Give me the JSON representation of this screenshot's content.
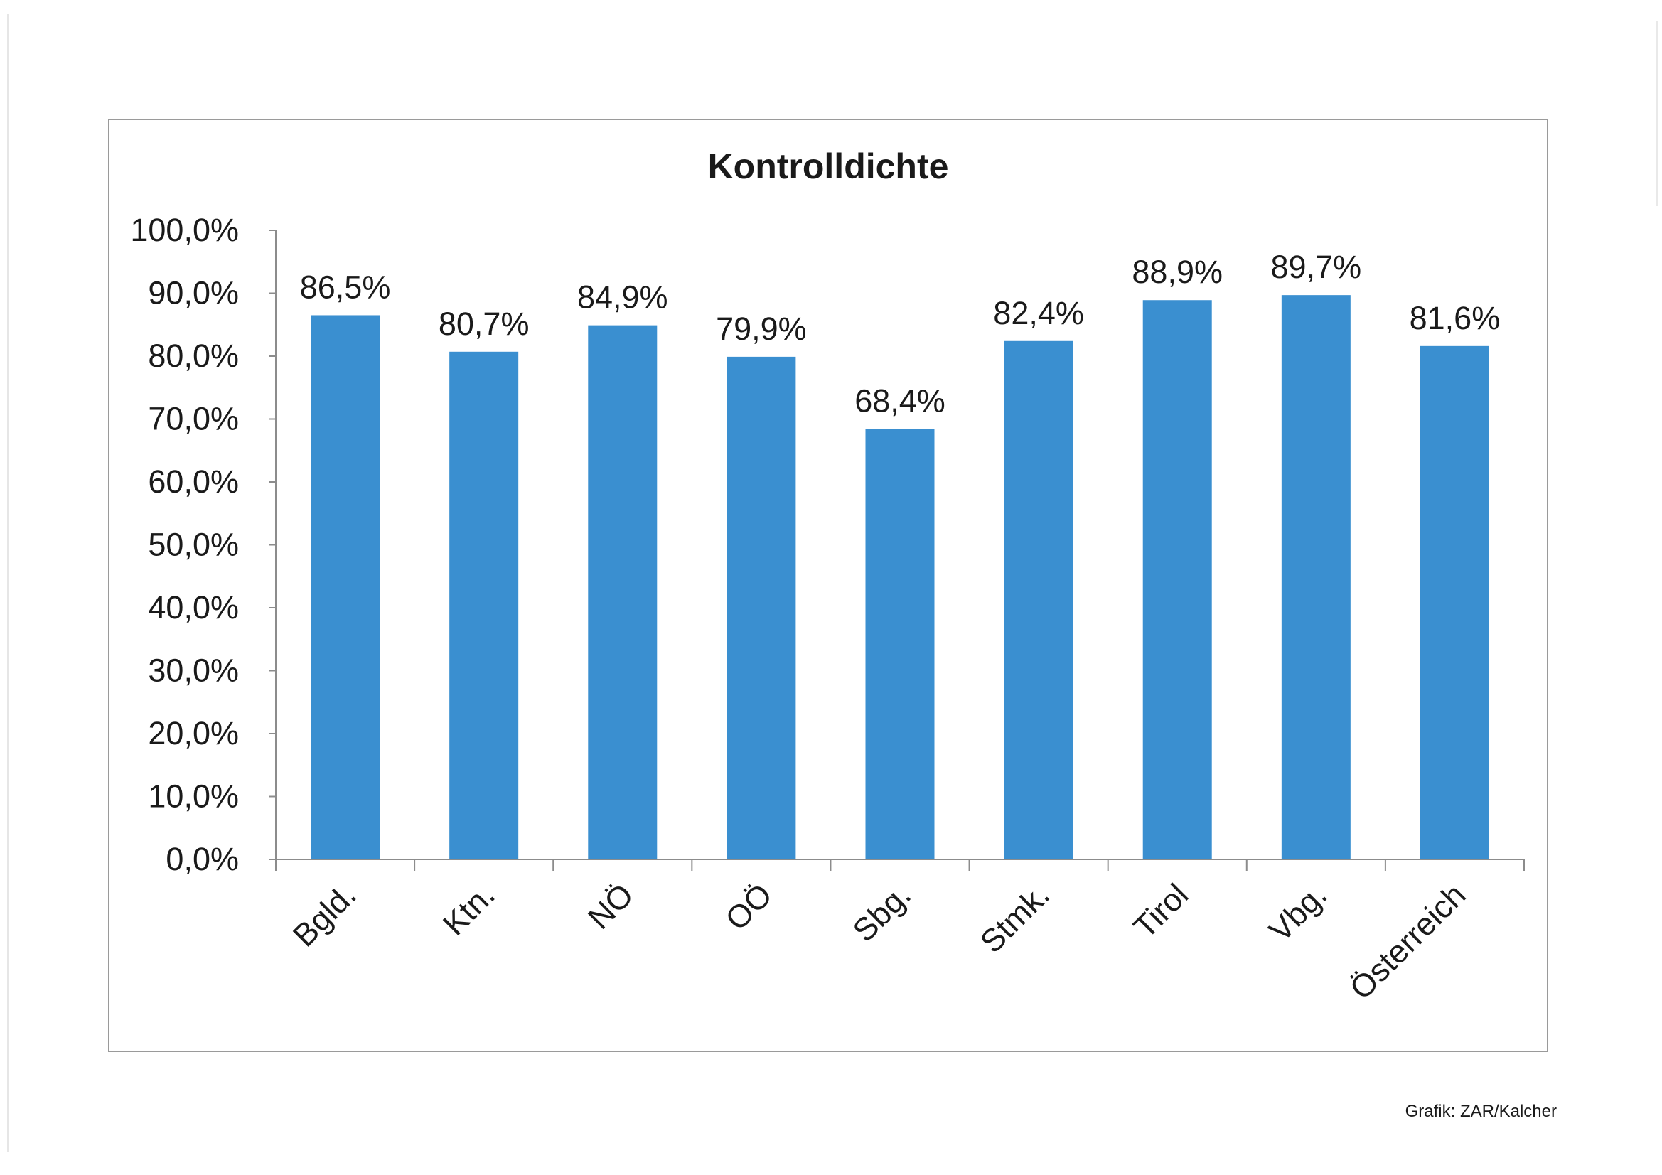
{
  "credit": "Grafik: ZAR/Kalcher",
  "colors": {
    "bar": "#3a8fd0",
    "text": "#1a1a1a",
    "axis": "#8c8c8c",
    "frame": "#9a9a9a"
  },
  "chart_data": {
    "type": "bar",
    "title": "Kontrolldichte",
    "xlabel": "",
    "ylabel": "",
    "categories": [
      "Bgld.",
      "Ktn.",
      "NÖ",
      "OÖ",
      "Sbg.",
      "Stmk.",
      "Tirol",
      "Vbg.",
      "Österreich"
    ],
    "values": [
      86.5,
      80.7,
      84.9,
      79.9,
      68.4,
      82.4,
      88.9,
      89.7,
      81.6
    ],
    "value_labels": [
      "86,5%",
      "80,7%",
      "84,9%",
      "79,9%",
      "68,4%",
      "82,4%",
      "88,9%",
      "89,7%",
      "81,6%"
    ],
    "ylim": [
      0,
      100
    ],
    "yticks": [
      0,
      10,
      20,
      30,
      40,
      50,
      60,
      70,
      80,
      90,
      100
    ],
    "ytick_labels": [
      "0,0%",
      "10,0%",
      "20,0%",
      "30,0%",
      "40,0%",
      "50,0%",
      "60,0%",
      "70,0%",
      "80,0%",
      "90,0%",
      "100,0%"
    ],
    "grid": false,
    "legend": "none"
  }
}
